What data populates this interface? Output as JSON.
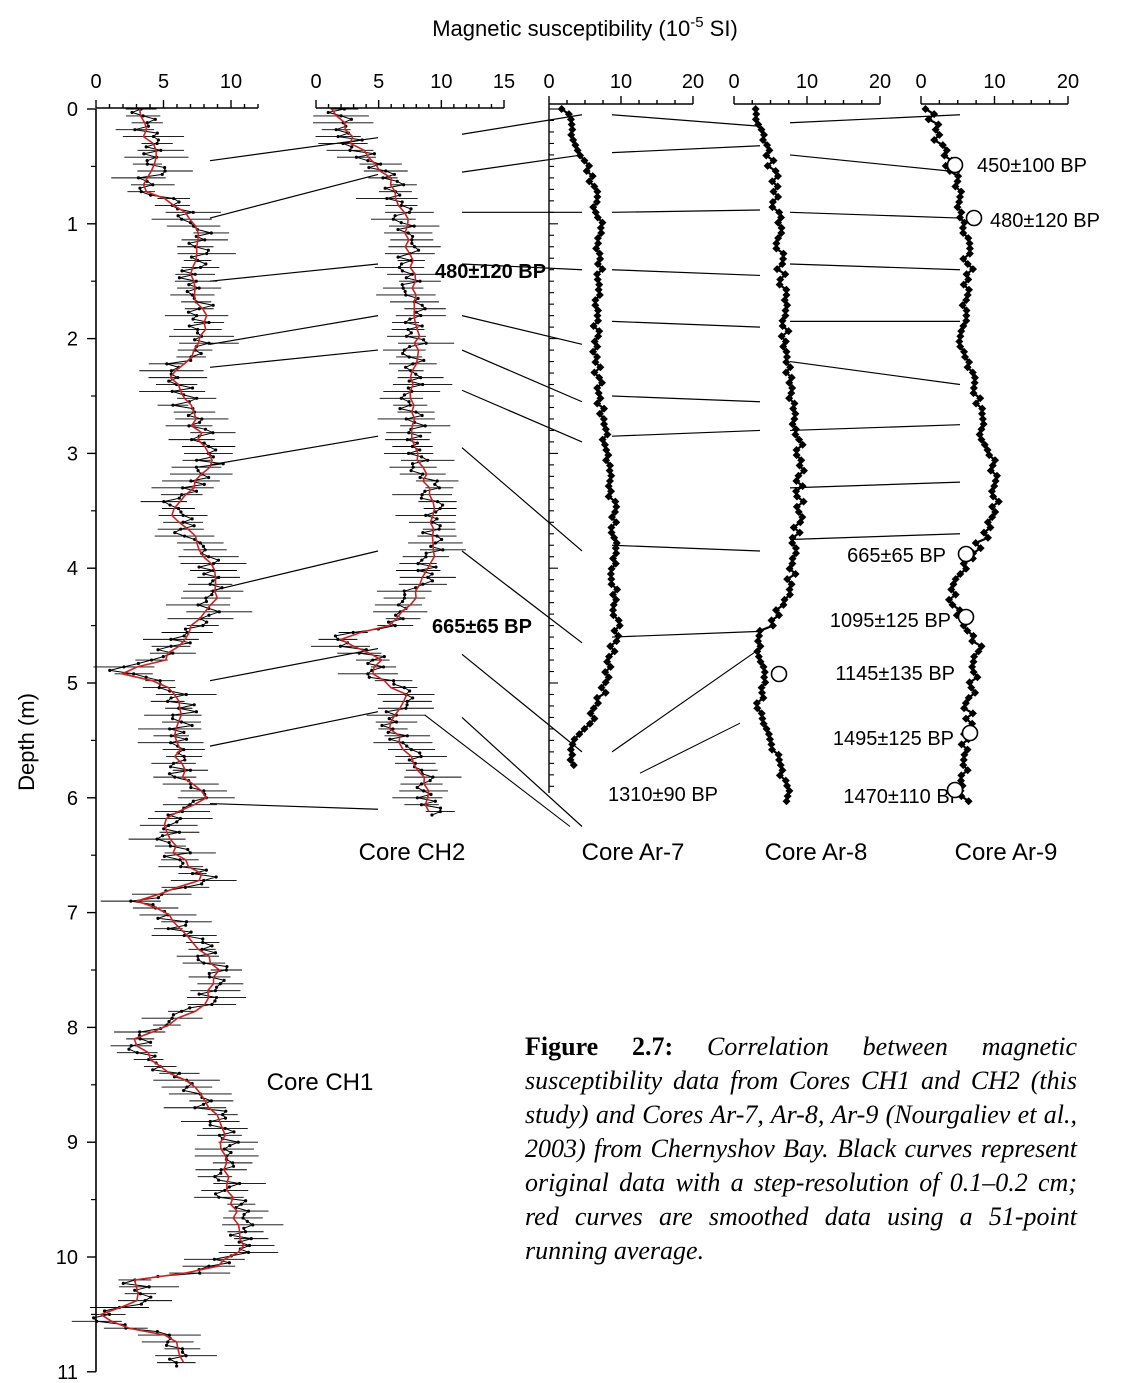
{
  "chart_data": {
    "type": "line",
    "title": "Magnetic susceptibility (10-5 SI)",
    "title_main": "Magnetic susceptibility (10",
    "title_exponent": "-5",
    "title_unit": " SI)",
    "ylabel": "Depth (m)",
    "ylim": [
      0,
      11
    ],
    "y_ticks": [
      "0",
      "1",
      "2",
      "3",
      "4",
      "5",
      "6",
      "7",
      "8",
      "9",
      "10",
      "11"
    ],
    "colors": {
      "raw": "#000000",
      "smoothed": "#cc2222",
      "link": "#000000"
    },
    "panels": [
      {
        "name": "Core CH1",
        "xlim": [
          0,
          12
        ],
        "x_ticks": [
          0,
          5,
          10
        ],
        "depth_range": [
          0,
          10.95
        ],
        "profile": [
          [
            0,
            3
          ],
          [
            0.3,
            4
          ],
          [
            0.5,
            4.5
          ],
          [
            0.7,
            3.5
          ],
          [
            0.85,
            6
          ],
          [
            1,
            7.5
          ],
          [
            1.3,
            7.5
          ],
          [
            1.5,
            7
          ],
          [
            1.8,
            8
          ],
          [
            2,
            8
          ],
          [
            2.2,
            6.5
          ],
          [
            2.3,
            5.5
          ],
          [
            2.5,
            6.5
          ],
          [
            2.8,
            7.5
          ],
          [
            3.1,
            8.5
          ],
          [
            3.3,
            7
          ],
          [
            3.5,
            5.5
          ],
          [
            3.7,
            7
          ],
          [
            4,
            8.5
          ],
          [
            4.2,
            9
          ],
          [
            4.4,
            8
          ],
          [
            4.6,
            6.5
          ],
          [
            4.8,
            5
          ],
          [
            4.9,
            1.5
          ],
          [
            5,
            5
          ],
          [
            5.2,
            6.5
          ],
          [
            5.4,
            6
          ],
          [
            5.6,
            6
          ],
          [
            5.8,
            6.5
          ],
          [
            6,
            8
          ],
          [
            6.2,
            5
          ],
          [
            6.5,
            6
          ],
          [
            6.7,
            8
          ],
          [
            6.9,
            3
          ],
          [
            7,
            5
          ],
          [
            7.2,
            7
          ],
          [
            7.5,
            9
          ],
          [
            7.8,
            8
          ],
          [
            8,
            5
          ],
          [
            8.1,
            3
          ],
          [
            8.3,
            4
          ],
          [
            8.5,
            7
          ],
          [
            8.8,
            9
          ],
          [
            9,
            9.5
          ],
          [
            9.5,
            10
          ],
          [
            9.9,
            11
          ],
          [
            10.1,
            9
          ],
          [
            10.2,
            3
          ],
          [
            10.4,
            3
          ],
          [
            10.5,
            0.5
          ],
          [
            10.6,
            1.5
          ],
          [
            10.7,
            6
          ],
          [
            10.95,
            6.5
          ]
        ],
        "raw_amp": 1.1,
        "smooth": true,
        "markers": "dots"
      },
      {
        "name": "Core CH2",
        "xlim": [
          0,
          15
        ],
        "x_ticks": [
          0,
          5,
          10,
          15
        ],
        "depth_range": [
          0,
          6.15
        ],
        "profile": [
          [
            0,
            1.5
          ],
          [
            0.3,
            3
          ],
          [
            0.6,
            6
          ],
          [
            0.9,
            7
          ],
          [
            1.3,
            7.5
          ],
          [
            1.6,
            8
          ],
          [
            2,
            8
          ],
          [
            2.5,
            7.5
          ],
          [
            3,
            8
          ],
          [
            3.3,
            9
          ],
          [
            3.7,
            9.5
          ],
          [
            4,
            9
          ],
          [
            4.3,
            7.5
          ],
          [
            4.5,
            6
          ],
          [
            4.6,
            2
          ],
          [
            4.7,
            3
          ],
          [
            4.8,
            5.5
          ],
          [
            4.9,
            4
          ],
          [
            5.1,
            7
          ],
          [
            5.4,
            6
          ],
          [
            5.7,
            8
          ],
          [
            6,
            9
          ],
          [
            6.15,
            9
          ]
        ],
        "raw_amp": 1.0,
        "smooth": true,
        "markers": "dots"
      },
      {
        "name": "Core Ar-7",
        "xlim": [
          0,
          20
        ],
        "x_ticks": [
          0,
          10,
          20
        ],
        "depth_range": [
          0,
          5.75
        ],
        "profile": [
          [
            0,
            2
          ],
          [
            0.3,
            4
          ],
          [
            0.6,
            6
          ],
          [
            1,
            7
          ],
          [
            1.5,
            7
          ],
          [
            2,
            6.5
          ],
          [
            2.5,
            7
          ],
          [
            3,
            8
          ],
          [
            3.5,
            9
          ],
          [
            4,
            9
          ],
          [
            4.5,
            9.5
          ],
          [
            5,
            8
          ],
          [
            5.3,
            6
          ],
          [
            5.5,
            3.5
          ],
          [
            5.6,
            3
          ],
          [
            5.75,
            4
          ]
        ],
        "raw_amp": 0.5,
        "smooth": false,
        "markers": "diamonds"
      },
      {
        "name": "Core Ar-8",
        "xlim": [
          0,
          20
        ],
        "x_ticks": [
          0,
          10,
          20
        ],
        "depth_range": [
          0,
          6.05
        ],
        "profile": [
          [
            0,
            3
          ],
          [
            0.3,
            4.5
          ],
          [
            0.6,
            5.5
          ],
          [
            1,
            6
          ],
          [
            1.5,
            6.5
          ],
          [
            2,
            7
          ],
          [
            2.5,
            8
          ],
          [
            3,
            9
          ],
          [
            3.5,
            9
          ],
          [
            4,
            8
          ],
          [
            4.3,
            7
          ],
          [
            4.5,
            5
          ],
          [
            4.6,
            3
          ],
          [
            4.8,
            3.5
          ],
          [
            5,
            4
          ],
          [
            5.3,
            3.5
          ],
          [
            5.5,
            5
          ],
          [
            5.7,
            6
          ],
          [
            6,
            7.5
          ],
          [
            6.05,
            7.5
          ]
        ],
        "raw_amp": 0.6,
        "smooth": false,
        "markers": "diamonds"
      },
      {
        "name": "Core Ar-9",
        "xlim": [
          0,
          20
        ],
        "x_ticks": [
          0,
          10,
          20
        ],
        "depth_range": [
          0,
          6.05
        ],
        "profile": [
          [
            0,
            1
          ],
          [
            0.2,
            2
          ],
          [
            0.5,
            4
          ],
          [
            0.8,
            5.5
          ],
          [
            1,
            6
          ],
          [
            1.5,
            6.5
          ],
          [
            2,
            5
          ],
          [
            2.3,
            7
          ],
          [
            2.7,
            8
          ],
          [
            3.1,
            10
          ],
          [
            3.5,
            10
          ],
          [
            3.8,
            8
          ],
          [
            4.1,
            5
          ],
          [
            4.3,
            4
          ],
          [
            4.5,
            6
          ],
          [
            4.7,
            8
          ],
          [
            5,
            7
          ],
          [
            5.5,
            6
          ],
          [
            6,
            6
          ],
          [
            6.05,
            6
          ]
        ],
        "raw_amp": 0.7,
        "smooth": false,
        "markers": "diamonds"
      }
    ],
    "ages": [
      {
        "core": "Core CH2",
        "label": "480±120 BP",
        "depth": 1.35,
        "bold": true
      },
      {
        "core": "Core CH2",
        "label": "665±65 BP",
        "depth": 4.5,
        "bold": true
      },
      {
        "core": "Core Ar-7",
        "label": "1310±90 BP",
        "depth": 5.95
      },
      {
        "core": "Core Ar-8",
        "label": "1145±135 BP",
        "depth": 4.9,
        "circle_depth": 4.93
      },
      {
        "core": "Core Ar-9",
        "label": "450±100 BP",
        "depth": 0.48,
        "circle_depth": 0.48
      },
      {
        "core": "Core Ar-9",
        "label": "480±120 BP",
        "depth": 0.95,
        "circle_depth": 0.95
      },
      {
        "core": "Core Ar-9",
        "label": "665±65 BP",
        "depth": 3.87,
        "circle_depth": 3.87
      },
      {
        "core": "Core Ar-9",
        "label": "1095±125 BP",
        "depth": 4.42,
        "circle_depth": 4.42
      },
      {
        "core": "Core Ar-9",
        "label": "1495±125 BP",
        "depth": 5.42,
        "circle_depth": 5.42
      },
      {
        "core": "Core Ar-9",
        "label": "1470±110 BP",
        "depth": 5.95,
        "circle_depth": 5.93
      }
    ],
    "tie_lines": [
      {
        "from": "Core CH1",
        "to": "Core CH2",
        "pairs": [
          [
            0.45,
            0.25
          ],
          [
            0.95,
            0.57
          ],
          [
            1.5,
            1.35
          ],
          [
            2.05,
            1.8
          ],
          [
            2.25,
            2.1
          ],
          [
            3.1,
            2.85
          ],
          [
            4.2,
            3.85
          ],
          [
            4.98,
            4.7
          ],
          [
            5.55,
            5.25
          ],
          [
            6.05,
            6.1
          ]
        ]
      },
      {
        "from": "Core CH2",
        "to": "Core Ar-7",
        "pairs": [
          [
            0.22,
            0.05
          ],
          [
            0.55,
            0.4
          ],
          [
            0.9,
            0.9
          ],
          [
            1.35,
            1.4
          ],
          [
            1.8,
            2.05
          ],
          [
            2.1,
            2.55
          ],
          [
            2.45,
            2.9
          ],
          [
            2.95,
            3.85
          ],
          [
            3.85,
            4.65
          ],
          [
            4.75,
            5.6
          ],
          [
            5.3,
            6.25
          ]
        ]
      },
      {
        "from": "Core Ar-7",
        "to": "Core Ar-8",
        "pairs": [
          [
            0.05,
            0.15
          ],
          [
            0.38,
            0.32
          ],
          [
            0.9,
            0.88
          ],
          [
            1.4,
            1.45
          ],
          [
            1.85,
            1.9
          ],
          [
            2.5,
            2.55
          ],
          [
            2.85,
            2.8
          ],
          [
            3.8,
            3.85
          ],
          [
            4.6,
            4.55
          ],
          [
            5.6,
            4.7
          ]
        ]
      },
      {
        "from": "Core Ar-8",
        "to": "Core Ar-9",
        "pairs": [
          [
            0.12,
            0.05
          ],
          [
            0.4,
            0.55
          ],
          [
            0.9,
            0.95
          ],
          [
            1.35,
            1.4
          ],
          [
            1.85,
            1.85
          ],
          [
            2.2,
            2.4
          ],
          [
            2.8,
            2.75
          ],
          [
            3.3,
            3.25
          ],
          [
            3.75,
            3.7
          ]
        ]
      }
    ],
    "ch1_to_ar7_lines": [
      [
        5.28,
        6.25
      ]
    ],
    "ar8_label_leaders": [
      [
        5.35,
        6.25
      ]
    ]
  },
  "caption": {
    "label": "Figure 2.7:",
    "text": "Correlation between magnetic susceptibility data from Cores CH1 and CH2 (this study) and Cores Ar-7, Ar-8, Ar-9 (Nourgaliev et al., 2003) from Chernyshov Bay. Black curves represent original data with a step-resolution of 0.1–0.2 cm; red curves are smoothed data using a 51-point running average."
  }
}
